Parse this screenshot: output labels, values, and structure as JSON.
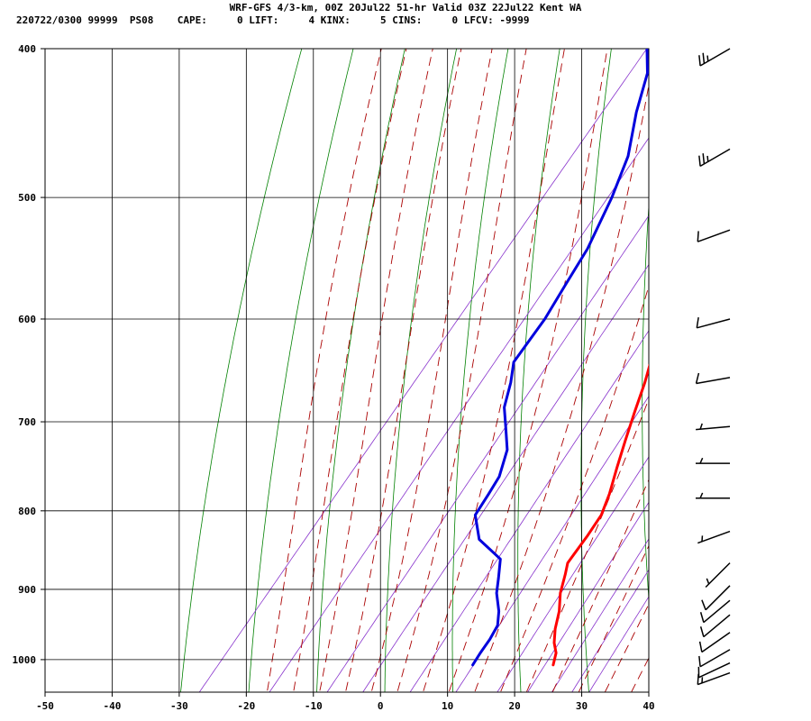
{
  "header": {
    "title": "WRF-GFS 4/3-km, 00Z 20Jul22 51-hr Valid 03Z 22Jul22 Kent WA",
    "subtitle": "220722/0300 99999  PS08    CAPE:     0 LIFT:     4 KINX:     5 CINS:     0 LFCV: -9999"
  },
  "colors": {
    "temperature": "#ff0000",
    "dewpoint": "#0000dd",
    "dry_adiabat": "#008000",
    "moist_adiabat": "#aa0000",
    "mixing_ratio": "#8833cc",
    "grid": "#000000"
  },
  "chart_data": {
    "type": "line",
    "subtype": "skew-t log-p sounding",
    "title": "WRF-GFS 4/3-km, 00Z 20Jul22 51-hr Valid 03Z 22Jul22 Kent WA",
    "x_label": "",
    "y_label": "",
    "x_range": [
      -50,
      40
    ],
    "y_range_hpa": [
      400,
      1050
    ],
    "y_scale": "log",
    "x_ticks": [
      "-50",
      "-40",
      "-30",
      "-20",
      "-10",
      "0",
      "10",
      "20",
      "30",
      "40"
    ],
    "y_ticks": [
      "400",
      "500",
      "600",
      "700",
      "800",
      "900",
      "1000"
    ],
    "grid": true,
    "series": [
      {
        "points": [
          [
            1008,
            22.5
          ],
          [
            990,
            21.5
          ],
          [
            975,
            20.0
          ],
          [
            955,
            18.5
          ],
          [
            930,
            17.0
          ],
          [
            905,
            15.0
          ],
          [
            880,
            13.5
          ],
          [
            865,
            12.5
          ],
          [
            830,
            12.2
          ],
          [
            805,
            11.8
          ],
          [
            780,
            10.5
          ],
          [
            750,
            8.5
          ],
          [
            720,
            6.5
          ],
          [
            690,
            4.5
          ],
          [
            660,
            2.5
          ],
          [
            635,
            0.5
          ],
          [
            600,
            -2.0
          ],
          [
            560,
            -5.5
          ],
          [
            530,
            -8.5
          ],
          [
            500,
            -11.5
          ],
          [
            470,
            -15.0
          ],
          [
            440,
            -19.0
          ],
          [
            415,
            -23.0
          ],
          [
            400,
            -25.5
          ]
        ]
      },
      {
        "points": [
          [
            1008,
            10.5
          ],
          [
            990,
            10.2
          ],
          [
            970,
            10.0
          ],
          [
            950,
            9.5
          ],
          [
            930,
            8.0
          ],
          [
            905,
            5.5
          ],
          [
            885,
            4.0
          ],
          [
            860,
            2.0
          ],
          [
            835,
            -3.5
          ],
          [
            805,
            -7.0
          ],
          [
            780,
            -7.5
          ],
          [
            760,
            -8.0
          ],
          [
            730,
            -10.0
          ],
          [
            705,
            -13.0
          ],
          [
            685,
            -15.5
          ],
          [
            660,
            -17.5
          ],
          [
            640,
            -19.5
          ],
          [
            600,
            -20.0
          ],
          [
            570,
            -21.0
          ],
          [
            540,
            -22.0
          ],
          [
            500,
            -24.5
          ],
          [
            470,
            -27.0
          ],
          [
            440,
            -31.0
          ],
          [
            415,
            -34.0
          ],
          [
            400,
            -37.0
          ]
        ]
      }
    ],
    "wind_barbs": [
      {
        "p": 400,
        "dir": 240,
        "kt": 25
      },
      {
        "p": 465,
        "dir": 240,
        "kt": 25
      },
      {
        "p": 525,
        "dir": 250,
        "kt": 10
      },
      {
        "p": 600,
        "dir": 255,
        "kt": 10
      },
      {
        "p": 655,
        "dir": 260,
        "kt": 10
      },
      {
        "p": 705,
        "dir": 265,
        "kt": 5
      },
      {
        "p": 745,
        "dir": 270,
        "kt": 5
      },
      {
        "p": 785,
        "dir": 270,
        "kt": 5
      },
      {
        "p": 825,
        "dir": 250,
        "kt": 5
      },
      {
        "p": 865,
        "dir": 225,
        "kt": 5
      },
      {
        "p": 895,
        "dir": 225,
        "kt": 10
      },
      {
        "p": 915,
        "dir": 230,
        "kt": 10
      },
      {
        "p": 935,
        "dir": 230,
        "kt": 10
      },
      {
        "p": 960,
        "dir": 235,
        "kt": 10
      },
      {
        "p": 985,
        "dir": 240,
        "kt": 10
      },
      {
        "p": 1005,
        "dir": 245,
        "kt": 10
      },
      {
        "p": 1020,
        "dir": 250,
        "kt": 15
      }
    ]
  }
}
